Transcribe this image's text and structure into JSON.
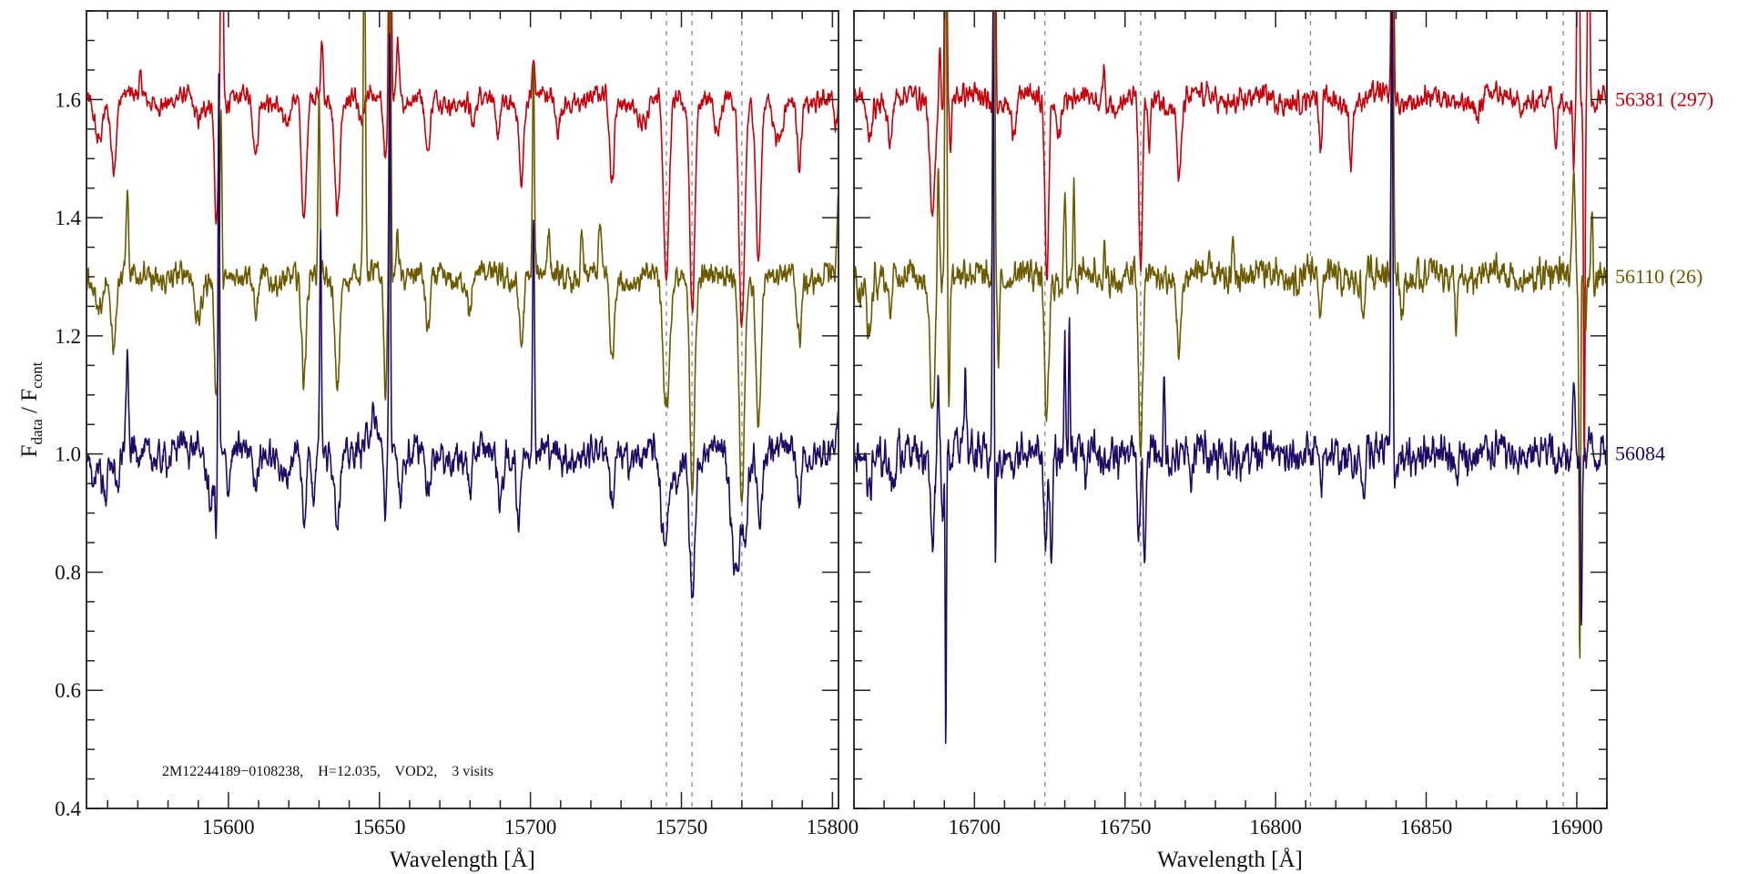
{
  "chart_data": {
    "type": "line",
    "title": "",
    "ylabel": {
      "main": "F",
      "sub1": "data",
      "mid": " / F",
      "sub2": "cont"
    },
    "ylim": [
      0.4,
      1.75
    ],
    "yticks_major": [
      0.4,
      0.6,
      0.8,
      1.0,
      1.2,
      1.4,
      1.6
    ],
    "ytick_labels": [
      "0.4",
      "0.6",
      "0.8",
      "1.0",
      "1.2",
      "1.4",
      "1.6"
    ],
    "ytick_minor_step": 0.05,
    "annotation": "2M12244189−0108238,    H=12.035,    VOD2,    3 visits",
    "series_labels": [
      {
        "text": "56381 (297)",
        "color": "#c8000a",
        "level": 1.6
      },
      {
        "text": "56110 (26)",
        "color": "#6b5a00",
        "level": 1.3
      },
      {
        "text": "56084",
        "color": "#1e0a64",
        "level": 1.0
      }
    ],
    "panels": [
      {
        "xlabel": "Wavelength [Å]",
        "xlim": [
          15553,
          15802
        ],
        "xticks_major": [
          15600,
          15650,
          15700,
          15750,
          15800
        ],
        "xtick_labels": [
          "15600",
          "15650",
          "15700",
          "15750",
          "15800"
        ],
        "xtick_minor_step": 10,
        "dashed_lines": [
          15745,
          15753.5,
          15770
        ],
        "series": [
          {
            "name": "56381",
            "color": "#c8000a",
            "continuum": 1.6,
            "noise": 0.012,
            "features": [
              [
                15557,
                -0.06,
                1.2
              ],
              [
                15562,
                -0.11,
                0.9
              ],
              [
                15571,
                0.03,
                0.5
              ],
              [
                15590,
                -0.04,
                1.5
              ],
              [
                15596,
                -0.2,
                0.6
              ],
              [
                15597.8,
                0.6,
                0.35
              ],
              [
                15609,
                -0.1,
                0.8
              ],
              [
                15619,
                -0.04,
                1
              ],
              [
                15625,
                -0.22,
                0.8
              ],
              [
                15631,
                0.1,
                0.4
              ],
              [
                15636,
                -0.19,
                0.8
              ],
              [
                15644,
                -0.05,
                1
              ],
              [
                15652,
                -0.1,
                0.6
              ],
              [
                15653.5,
                0.7,
                0.35
              ],
              [
                15656,
                0.1,
                0.5
              ],
              [
                15666,
                -0.1,
                0.8
              ],
              [
                15681,
                -0.05,
                0.8
              ],
              [
                15689,
                -0.06,
                0.8
              ],
              [
                15697,
                -0.14,
                0.7
              ],
              [
                15701,
                0.06,
                0.4
              ],
              [
                15709,
                -0.05,
                0.8
              ],
              [
                15727,
                -0.15,
                0.7
              ],
              [
                15737,
                -0.04,
                1.5
              ],
              [
                15745,
                -0.31,
                0.9
              ],
              [
                15753.6,
                -0.35,
                0.8
              ],
              [
                15762,
                -0.07,
                1.2
              ],
              [
                15770,
                -0.39,
                0.9
              ],
              [
                15775.5,
                -0.27,
                0.8
              ],
              [
                15782,
                -0.08,
                1.5
              ],
              [
                15789,
                -0.1,
                0.7
              ],
              [
                15801,
                -0.05,
                0.6
              ]
            ]
          },
          {
            "name": "56110",
            "color": "#6b5a00",
            "continuum": 1.3,
            "noise": 0.016,
            "features": [
              [
                15557,
                -0.06,
                1
              ],
              [
                15562,
                -0.11,
                0.9
              ],
              [
                15566.5,
                0.15,
                0.35
              ],
              [
                15590,
                -0.08,
                1.2
              ],
              [
                15596,
                -0.19,
                0.6
              ],
              [
                15597.5,
                0.3,
                0.3
              ],
              [
                15609,
                -0.07,
                0.8
              ],
              [
                15625,
                -0.18,
                0.8
              ],
              [
                15630,
                0.3,
                0.3
              ],
              [
                15636,
                -0.18,
                0.8
              ],
              [
                15645,
                0.6,
                0.35
              ],
              [
                15652,
                -0.2,
                0.5
              ],
              [
                15653.5,
                0.6,
                0.3
              ],
              [
                15656,
                0.08,
                0.5
              ],
              [
                15666,
                -0.1,
                0.8
              ],
              [
                15680,
                -0.07,
                0.7
              ],
              [
                15697,
                -0.11,
                0.7
              ],
              [
                15701,
                0.35,
                0.3
              ],
              [
                15706,
                0.08,
                0.4
              ],
              [
                15717,
                0.07,
                0.4
              ],
              [
                15723,
                0.08,
                0.4
              ],
              [
                15727,
                -0.15,
                0.7
              ],
              [
                15745,
                -0.23,
                1.1
              ],
              [
                15753.6,
                -0.34,
                0.8
              ],
              [
                15770,
                -0.36,
                0.9
              ],
              [
                15775.5,
                -0.25,
                0.8
              ],
              [
                15789,
                -0.1,
                0.7
              ],
              [
                15802,
                0.15,
                0.4
              ]
            ]
          },
          {
            "name": "56084",
            "color": "#1e0a64",
            "continuum": 1.0,
            "noise": 0.02,
            "features": [
              [
                15555,
                -0.04,
                1
              ],
              [
                15559,
                -0.07,
                0.7
              ],
              [
                15563,
                -0.07,
                0.7
              ],
              [
                15566.5,
                0.16,
                0.35
              ],
              [
                15584,
                0.02,
                1
              ],
              [
                15594,
                -0.08,
                1
              ],
              [
                15596,
                -0.1,
                0.4
              ],
              [
                15596.8,
                0.66,
                0.25
              ],
              [
                15600,
                -0.05,
                0.5
              ],
              [
                15609,
                -0.05,
                0.8
              ],
              [
                15619,
                -0.04,
                1
              ],
              [
                15625,
                -0.12,
                0.7
              ],
              [
                15628,
                -0.08,
                0.5
              ],
              [
                15630.5,
                0.38,
                0.3
              ],
              [
                15636,
                -0.1,
                0.7
              ],
              [
                15648,
                0.05,
                1.5
              ],
              [
                15652,
                -0.1,
                0.4
              ],
              [
                15653.4,
                0.75,
                0.25
              ],
              [
                15657,
                -0.06,
                0.5
              ],
              [
                15666,
                -0.08,
                0.8
              ],
              [
                15680,
                -0.06,
                0.8
              ],
              [
                15690,
                -0.08,
                0.8
              ],
              [
                15696,
                -0.1,
                0.6
              ],
              [
                15701,
                0.4,
                0.3
              ],
              [
                15727,
                -0.09,
                0.7
              ],
              [
                15744.5,
                -0.17,
                1.2
              ],
              [
                15748,
                -0.05,
                1
              ],
              [
                15753.6,
                -0.23,
                0.9
              ],
              [
                15768,
                -0.2,
                1.5
              ],
              [
                15771,
                -0.12,
                0.8
              ],
              [
                15776,
                -0.1,
                0.8
              ],
              [
                15789,
                -0.08,
                0.6
              ],
              [
                15802,
                0.06,
                0.6
              ]
            ]
          }
        ]
      },
      {
        "xlabel": "Wavelength [Å]",
        "xlim": [
          16660,
          16910
        ],
        "xticks_major": [
          16700,
          16750,
          16800,
          16850,
          16900
        ],
        "xtick_labels": [
          "16700",
          "16750",
          "16800",
          "16850",
          "16900"
        ],
        "xtick_minor_step": 10,
        "dashed_lines": [
          16723.4,
          16755.2,
          16811.6,
          16895.5
        ],
        "series": [
          {
            "name": "56381",
            "color": "#c8000a",
            "continuum": 1.6,
            "noise": 0.014,
            "features": [
              [
                16665,
                -0.06,
                0.8
              ],
              [
                16672,
                -0.08,
                0.6
              ],
              [
                16686,
                -0.2,
                0.8
              ],
              [
                16688.5,
                0.1,
                0.3
              ],
              [
                16690.5,
                0.7,
                0.3
              ],
              [
                16692,
                -0.1,
                0.3
              ],
              [
                16706.7,
                0.7,
                0.3
              ],
              [
                16713,
                -0.05,
                1
              ],
              [
                16724,
                -0.3,
                0.6
              ],
              [
                16728,
                -0.06,
                0.6
              ],
              [
                16743,
                0.07,
                0.3
              ],
              [
                16755.2,
                -0.3,
                0.6
              ],
              [
                16758,
                -0.08,
                0.5
              ],
              [
                16768,
                -0.13,
                0.7
              ],
              [
                16815,
                -0.1,
                0.5
              ],
              [
                16825,
                -0.1,
                0.5
              ],
              [
                16838.8,
                0.6,
                0.35
              ],
              [
                16867,
                -0.04,
                0.5
              ],
              [
                16893,
                -0.08,
                0.6
              ],
              [
                16899,
                -0.1,
                0.3
              ],
              [
                16900.5,
                0.9,
                0.3
              ],
              [
                16902.5,
                -0.6,
                0.25
              ],
              [
                16904,
                0.5,
                0.3
              ]
            ]
          },
          {
            "name": "56110",
            "color": "#6b5a00",
            "continuum": 1.3,
            "noise": 0.02,
            "features": [
              [
                16662,
                -0.03,
                1
              ],
              [
                16665,
                -0.1,
                0.7
              ],
              [
                16672,
                -0.06,
                0.5
              ],
              [
                16686,
                -0.22,
                0.8
              ],
              [
                16688,
                0.22,
                0.3
              ],
              [
                16690.5,
                0.7,
                0.3
              ],
              [
                16691.5,
                -0.2,
                0.3
              ],
              [
                16706.5,
                0.7,
                0.3
              ],
              [
                16708,
                -0.15,
                0.3
              ],
              [
                16724,
                -0.24,
                0.7
              ],
              [
                16730,
                0.14,
                0.3
              ],
              [
                16733,
                0.16,
                0.3
              ],
              [
                16743,
                0.06,
                0.3
              ],
              [
                16755.2,
                -0.3,
                0.7
              ],
              [
                16768,
                -0.12,
                0.7
              ],
              [
                16786,
                0.1,
                0.3
              ],
              [
                16815,
                -0.08,
                0.5
              ],
              [
                16829,
                -0.07,
                0.5
              ],
              [
                16838.8,
                0.6,
                0.35
              ],
              [
                16842,
                -0.05,
                0.5
              ],
              [
                16860,
                -0.08,
                0.4
              ],
              [
                16899,
                0.2,
                0.4
              ],
              [
                16901,
                -0.66,
                0.25
              ],
              [
                16903,
                -0.06,
                0.4
              ],
              [
                16905,
                0.12,
                0.35
              ]
            ]
          },
          {
            "name": "56084",
            "color": "#1e0a64",
            "continuum": 1.0,
            "noise": 0.024,
            "features": [
              [
                16665,
                -0.06,
                0.7
              ],
              [
                16673,
                -0.06,
                0.6
              ],
              [
                16686,
                -0.14,
                0.6
              ],
              [
                16688,
                0.15,
                0.3
              ],
              [
                16689.5,
                -0.1,
                0.3
              ],
              [
                16690.5,
                -0.51,
                0.2
              ],
              [
                16694,
                0.05,
                0.5
              ],
              [
                16697,
                0.12,
                0.3
              ],
              [
                16706.2,
                0.75,
                0.25
              ],
              [
                16707,
                -0.18,
                0.2
              ],
              [
                16713,
                -0.03,
                1
              ],
              [
                16723.5,
                -0.15,
                0.5
              ],
              [
                16725.5,
                -0.18,
                0.4
              ],
              [
                16730,
                0.21,
                0.25
              ],
              [
                16731.5,
                0.22,
                0.25
              ],
              [
                16737,
                -0.06,
                0.4
              ],
              [
                16754.5,
                -0.16,
                0.5
              ],
              [
                16756.5,
                -0.2,
                0.4
              ],
              [
                16763,
                0.12,
                0.3
              ],
              [
                16772,
                -0.06,
                0.4
              ],
              [
                16815,
                -0.07,
                0.6
              ],
              [
                16829,
                -0.06,
                0.6
              ],
              [
                16838.6,
                0.8,
                0.3
              ],
              [
                16839.5,
                -0.1,
                0.3
              ],
              [
                16860,
                -0.05,
                0.4
              ],
              [
                16893,
                -0.05,
                0.5
              ],
              [
                16899,
                0.15,
                0.4
              ],
              [
                16901.5,
                -0.3,
                0.25
              ],
              [
                16904,
                0.04,
                0.6
              ]
            ]
          }
        ]
      }
    ]
  }
}
